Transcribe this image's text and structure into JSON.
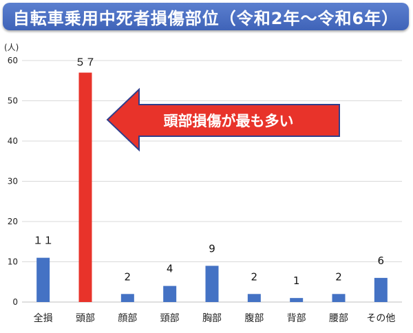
{
  "title": "自転車乗用中死者損傷部位（令和2年～令和6年）",
  "colors": {
    "bar": "#4472c4",
    "highlight": "#e8332a",
    "banner": "#4a6fc4"
  },
  "callout": "頭部損傷が最も多い",
  "chart_data": {
    "type": "bar",
    "categories": [
      "全損",
      "頭部",
      "顔部",
      "頸部",
      "胸部",
      "腹部",
      "背部",
      "腰部",
      "その他"
    ],
    "values": [
      11,
      57,
      2,
      4,
      9,
      2,
      1,
      2,
      6
    ],
    "data_labels": [
      "１１",
      "５７",
      "2",
      "4",
      "9",
      "2",
      "1",
      "2",
      "6"
    ],
    "highlight_index": 1,
    "yunit": "(人)",
    "ylim": [
      0,
      60
    ],
    "yticks": [
      "0",
      "10",
      "20",
      "30",
      "40",
      "50",
      "60"
    ],
    "grid": true,
    "legend": "none"
  }
}
